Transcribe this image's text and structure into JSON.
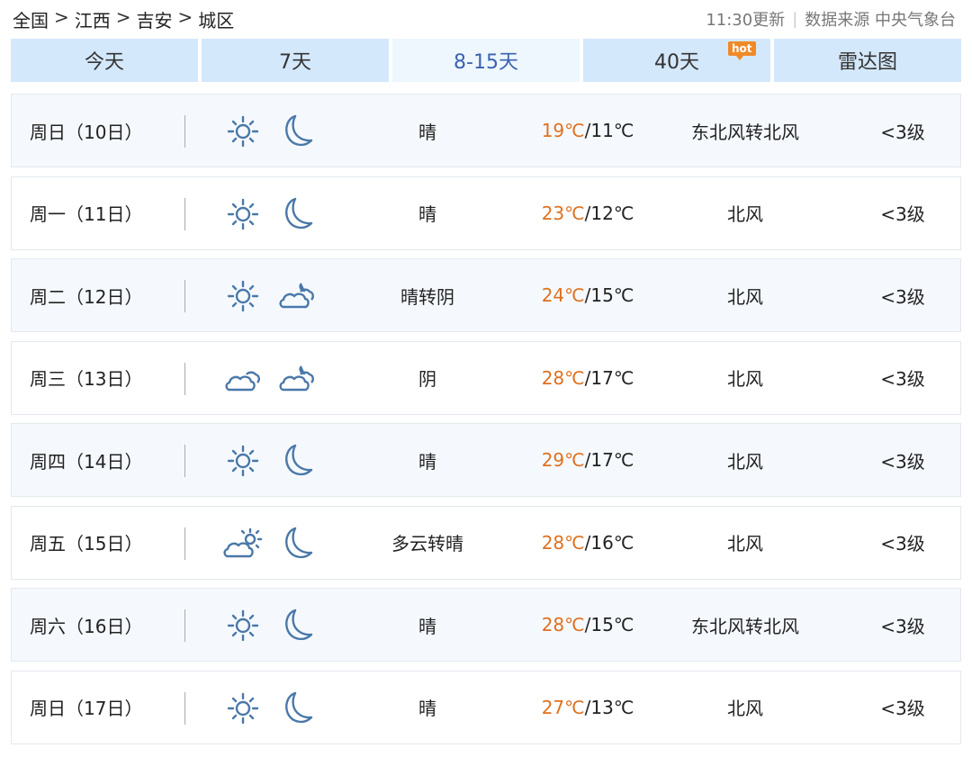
{
  "breadcrumb": [
    "全国",
    "江西",
    "吉安",
    "城区"
  ],
  "breadcrumb_sep": ">",
  "update_time": "11:30更新",
  "source": "数据来源 中央气象台",
  "tabs": [
    {
      "label": "今天"
    },
    {
      "label": "7天"
    },
    {
      "label": "8-15天",
      "active": true
    },
    {
      "label": "40天",
      "badge": "hot"
    },
    {
      "label": "雷达图"
    }
  ],
  "colors": {
    "accent": "#3b62b1",
    "high_temp": "#e0701e",
    "tab_bg": "#d4e8fb",
    "icon": "#4a78a8",
    "hot_badge": "#f08a28"
  },
  "days": [
    {
      "date": "周日（10日）",
      "day_icon": "sun",
      "night_icon": "moon",
      "weather": "晴",
      "high": "19℃",
      "low": "11℃",
      "wind": "东北风转北风",
      "level": "<3级"
    },
    {
      "date": "周一（11日）",
      "day_icon": "sun",
      "night_icon": "moon",
      "weather": "晴",
      "high": "23℃",
      "low": "12℃",
      "wind": "北风",
      "level": "<3级"
    },
    {
      "date": "周二（12日）",
      "day_icon": "sun",
      "night_icon": "cloud-night",
      "weather": "晴转阴",
      "high": "24℃",
      "low": "15℃",
      "wind": "北风",
      "level": "<3级"
    },
    {
      "date": "周三（13日）",
      "day_icon": "cloud",
      "night_icon": "cloud-night",
      "weather": "阴",
      "high": "28℃",
      "low": "17℃",
      "wind": "北风",
      "level": "<3级"
    },
    {
      "date": "周四（14日）",
      "day_icon": "sun",
      "night_icon": "moon",
      "weather": "晴",
      "high": "29℃",
      "low": "17℃",
      "wind": "北风",
      "level": "<3级"
    },
    {
      "date": "周五（15日）",
      "day_icon": "cloud-sun",
      "night_icon": "moon",
      "weather": "多云转晴",
      "high": "28℃",
      "low": "16℃",
      "wind": "北风",
      "level": "<3级"
    },
    {
      "date": "周六（16日）",
      "day_icon": "sun",
      "night_icon": "moon",
      "weather": "晴",
      "high": "28℃",
      "low": "15℃",
      "wind": "东北风转北风",
      "level": "<3级"
    },
    {
      "date": "周日（17日）",
      "day_icon": "sun",
      "night_icon": "moon",
      "weather": "晴",
      "high": "27℃",
      "low": "13℃",
      "wind": "北风",
      "level": "<3级"
    }
  ]
}
